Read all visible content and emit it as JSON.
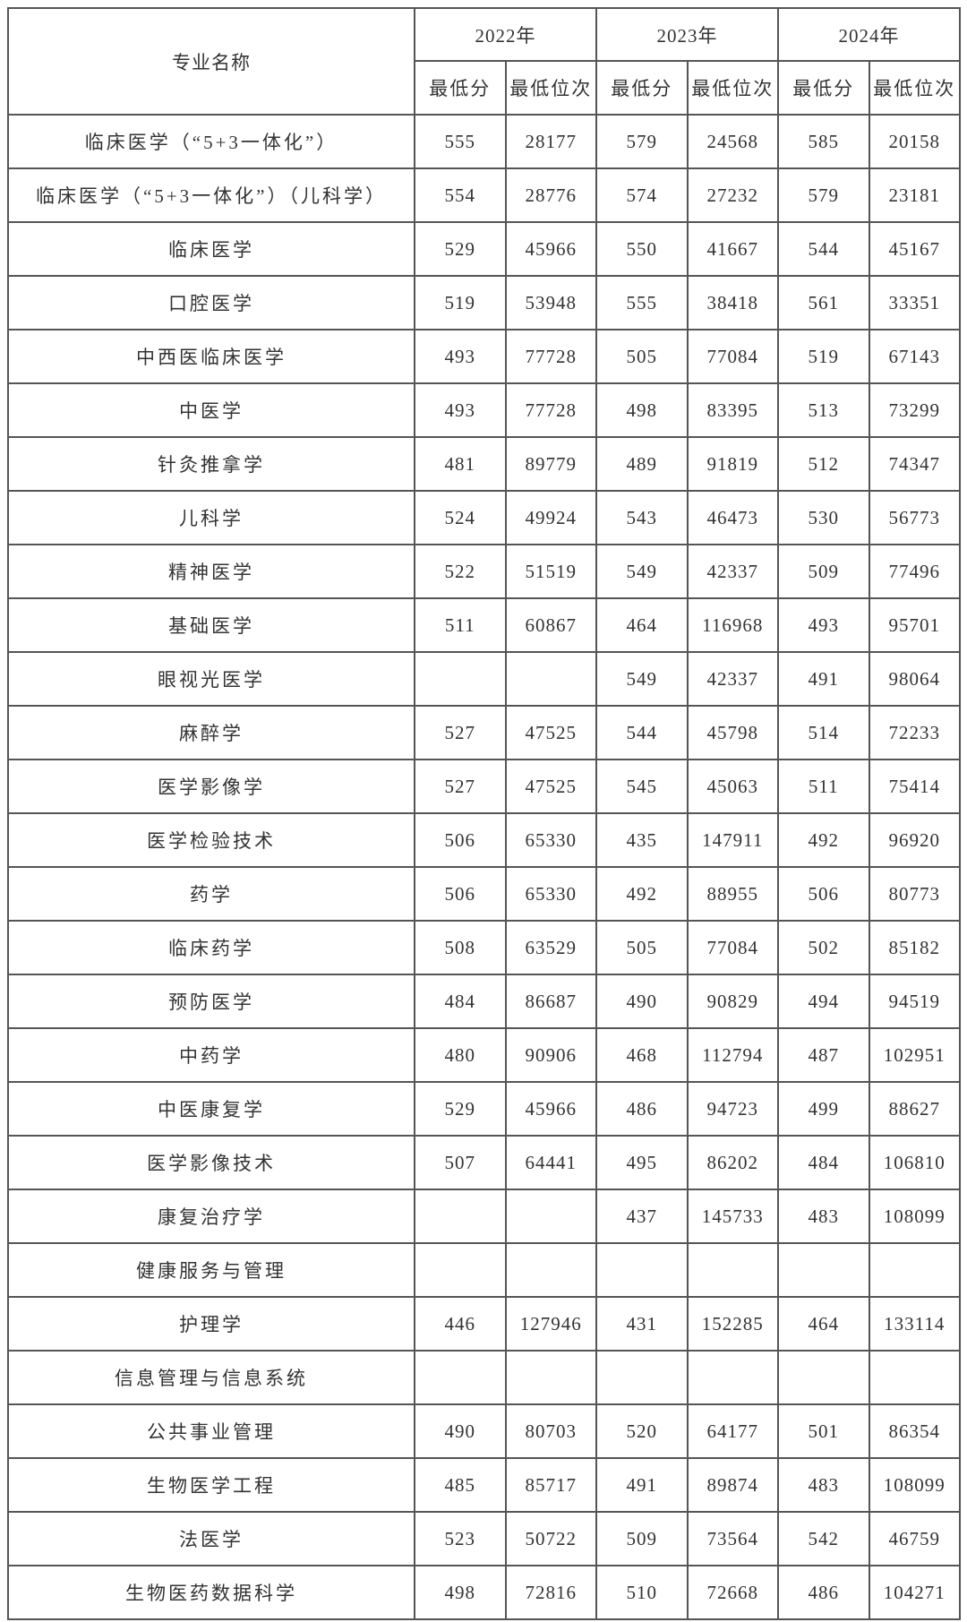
{
  "header": {
    "name_label": "专业名称",
    "years": [
      "2022年",
      "2023年",
      "2024年"
    ],
    "sub_labels": [
      "最低分",
      "最低位次"
    ]
  },
  "rows": [
    {
      "name": "临床医学（“5+3一体化”）",
      "v": [
        "555",
        "28177",
        "579",
        "24568",
        "585",
        "20158"
      ]
    },
    {
      "name": "临床医学（“5+3一体化”）（儿科学）",
      "v": [
        "554",
        "28776",
        "574",
        "27232",
        "579",
        "23181"
      ]
    },
    {
      "name": "临床医学",
      "v": [
        "529",
        "45966",
        "550",
        "41667",
        "544",
        "45167"
      ]
    },
    {
      "name": "口腔医学",
      "v": [
        "519",
        "53948",
        "555",
        "38418",
        "561",
        "33351"
      ]
    },
    {
      "name": "中西医临床医学",
      "v": [
        "493",
        "77728",
        "505",
        "77084",
        "519",
        "67143"
      ]
    },
    {
      "name": "中医学",
      "v": [
        "493",
        "77728",
        "498",
        "83395",
        "513",
        "73299"
      ]
    },
    {
      "name": "针灸推拿学",
      "v": [
        "481",
        "89779",
        "489",
        "91819",
        "512",
        "74347"
      ]
    },
    {
      "name": "儿科学",
      "v": [
        "524",
        "49924",
        "543",
        "46473",
        "530",
        "56773"
      ]
    },
    {
      "name": "精神医学",
      "v": [
        "522",
        "51519",
        "549",
        "42337",
        "509",
        "77496"
      ]
    },
    {
      "name": "基础医学",
      "v": [
        "511",
        "60867",
        "464",
        "116968",
        "493",
        "95701"
      ]
    },
    {
      "name": "眼视光医学",
      "v": [
        "",
        "",
        "549",
        "42337",
        "491",
        "98064"
      ]
    },
    {
      "name": "麻醉学",
      "v": [
        "527",
        "47525",
        "544",
        "45798",
        "514",
        "72233"
      ]
    },
    {
      "name": "医学影像学",
      "v": [
        "527",
        "47525",
        "545",
        "45063",
        "511",
        "75414"
      ]
    },
    {
      "name": "医学检验技术",
      "v": [
        "506",
        "65330",
        "435",
        "147911",
        "492",
        "96920"
      ]
    },
    {
      "name": "药学",
      "v": [
        "506",
        "65330",
        "492",
        "88955",
        "506",
        "80773"
      ]
    },
    {
      "name": "临床药学",
      "v": [
        "508",
        "63529",
        "505",
        "77084",
        "502",
        "85182"
      ]
    },
    {
      "name": "预防医学",
      "v": [
        "484",
        "86687",
        "490",
        "90829",
        "494",
        "94519"
      ]
    },
    {
      "name": "中药学",
      "v": [
        "480",
        "90906",
        "468",
        "112794",
        "487",
        "102951"
      ]
    },
    {
      "name": "中医康复学",
      "v": [
        "529",
        "45966",
        "486",
        "94723",
        "499",
        "88627"
      ]
    },
    {
      "name": "医学影像技术",
      "v": [
        "507",
        "64441",
        "495",
        "86202",
        "484",
        "106810"
      ]
    },
    {
      "name": "康复治疗学",
      "v": [
        "",
        "",
        "437",
        "145733",
        "483",
        "108099"
      ]
    },
    {
      "name": "健康服务与管理",
      "v": [
        "",
        "",
        "",
        "",
        "",
        ""
      ]
    },
    {
      "name": "护理学",
      "v": [
        "446",
        "127946",
        "431",
        "152285",
        "464",
        "133114"
      ]
    },
    {
      "name": "信息管理与信息系统",
      "v": [
        "",
        "",
        "",
        "",
        "",
        ""
      ]
    },
    {
      "name": "公共事业管理",
      "v": [
        "490",
        "80703",
        "520",
        "64177",
        "501",
        "86354"
      ]
    },
    {
      "name": "生物医学工程",
      "v": [
        "485",
        "85717",
        "491",
        "89874",
        "483",
        "108099"
      ]
    },
    {
      "name": "法医学",
      "v": [
        "523",
        "50722",
        "509",
        "73564",
        "542",
        "46759"
      ]
    },
    {
      "name": "生物医药数据科学",
      "v": [
        "498",
        "72816",
        "510",
        "72668",
        "486",
        "104271"
      ]
    }
  ]
}
